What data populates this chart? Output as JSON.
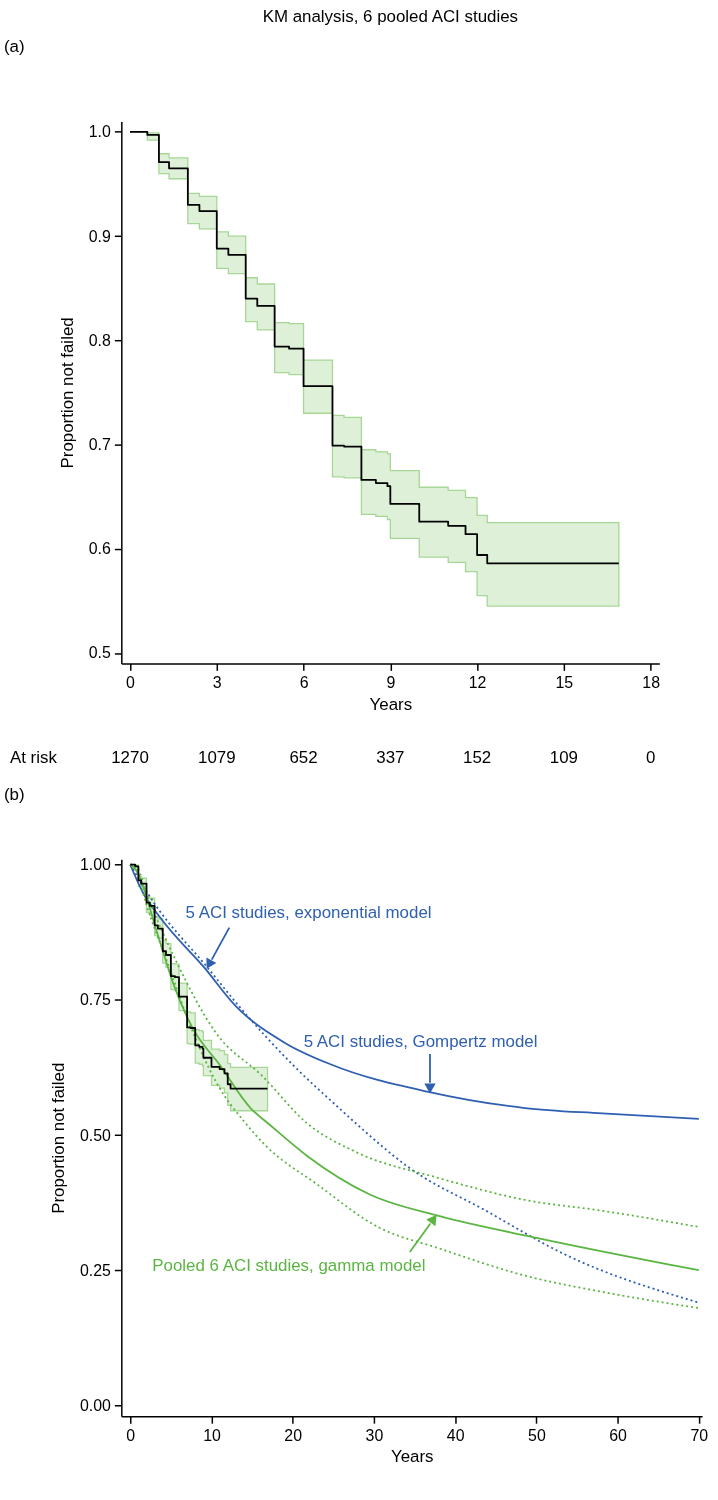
{
  "chart_data": [
    {
      "type": "step",
      "title": "KM analysis, 6 pooled ACI studies",
      "xlabel": "Years",
      "ylabel": "Proportion not failed",
      "xlim": [
        -0.3,
        18.3
      ],
      "ylim": [
        0.49,
        1.01
      ],
      "xticks": [
        0,
        3,
        6,
        9,
        12,
        15,
        18
      ],
      "yticks": [
        0.5,
        0.6,
        0.7,
        0.8,
        0.9,
        {
          "value": 1,
          "label": "1.0"
        }
      ],
      "series": [
        {
          "color": "#000000",
          "line_style": "solid",
          "x": [
            0,
            0.6,
            1.0,
            1.35,
            2,
            2.4,
            3,
            3.4,
            4,
            4.4,
            5,
            5.5,
            6,
            7,
            7.4,
            8,
            8.5,
            8.9,
            9,
            10,
            11,
            11.6,
            12,
            12.35,
            16.9
          ],
          "values": [
            1.0,
            0.997,
            0.971,
            0.965,
            0.93,
            0.924,
            0.888,
            0.882,
            0.84,
            0.833,
            0.794,
            0.792,
            0.756,
            0.699,
            0.698,
            0.666,
            0.663,
            0.66,
            0.643,
            0.626,
            0.622,
            0.614,
            0.594,
            0.586,
            0.586
          ],
          "upper": [
            1.0,
            0.999,
            0.979,
            0.975,
            0.941,
            0.938,
            0.904,
            0.9,
            0.86,
            0.854,
            0.817,
            0.816,
            0.781,
            0.728,
            0.726,
            0.695,
            0.693,
            0.691,
            0.675,
            0.659,
            0.656,
            0.649,
            0.632,
            0.625,
            0.625
          ],
          "lower": [
            1.0,
            0.992,
            0.96,
            0.955,
            0.912,
            0.907,
            0.869,
            0.864,
            0.818,
            0.81,
            0.769,
            0.767,
            0.73,
            0.669,
            0.668,
            0.633,
            0.631,
            0.628,
            0.61,
            0.592,
            0.587,
            0.578,
            0.555,
            0.545,
            0.545
          ]
        }
      ],
      "annotations": [
        "(a)",
        "At risk",
        "1270",
        "1079",
        "652",
        "337",
        "152",
        "109",
        "0"
      ]
    },
    {
      "type": "line",
      "xlabel": "Years",
      "ylabel": "Proportion not failed",
      "xlim": [
        -1.1,
        70.4
      ],
      "ylim": [
        -0.02,
        1.01
      ],
      "xticks": [
        0,
        10,
        20,
        30,
        40,
        50,
        60,
        70
      ],
      "yticks": [
        {
          "value": 0,
          "label": "0.00"
        },
        0.25,
        {
          "value": 0.5,
          "label": "0.50"
        },
        0.75,
        {
          "value": 1,
          "label": "1.00"
        }
      ],
      "series": [
        {
          "type": "step",
          "color": "#000000",
          "line_style": "solid",
          "x": [
            0,
            0.6,
            1.0,
            1.35,
            2,
            2.4,
            3,
            3.4,
            4,
            4.4,
            5,
            5.5,
            6,
            7,
            7.4,
            8,
            8.5,
            8.9,
            9,
            10,
            11,
            11.6,
            12,
            12.35,
            16.9
          ],
          "values": [
            1.0,
            0.997,
            0.971,
            0.965,
            0.93,
            0.924,
            0.888,
            0.882,
            0.84,
            0.833,
            0.794,
            0.792,
            0.756,
            0.699,
            0.698,
            0.666,
            0.663,
            0.66,
            0.643,
            0.626,
            0.622,
            0.614,
            0.594,
            0.586,
            0.586
          ],
          "upper": [
            1.0,
            0.999,
            0.979,
            0.975,
            0.941,
            0.938,
            0.904,
            0.9,
            0.86,
            0.854,
            0.817,
            0.816,
            0.781,
            0.728,
            0.726,
            0.695,
            0.693,
            0.691,
            0.675,
            0.659,
            0.656,
            0.649,
            0.632,
            0.625,
            0.625
          ],
          "lower": [
            1.0,
            0.992,
            0.96,
            0.955,
            0.912,
            0.907,
            0.869,
            0.864,
            0.818,
            0.81,
            0.769,
            0.767,
            0.73,
            0.669,
            0.668,
            0.633,
            0.631,
            0.628,
            0.61,
            0.592,
            0.587,
            0.578,
            0.555,
            0.545,
            0.545
          ]
        },
        {
          "color": "#2e5fb0",
          "line_style": "dotted",
          "x": [
            0,
            2.9,
            9.5,
            13.3,
            20,
            25.7,
            27.9,
            34.3,
            43.8,
            53.4,
            70
          ],
          "values": [
            1,
            0.93,
            0.81,
            0.74,
            0.63,
            0.55,
            0.52,
            0.44,
            0.36,
            0.28,
            0.19
          ]
        },
        {
          "color": "#2e5fb0",
          "line_style": "solid",
          "x": [
            0,
            1.5,
            3.8,
            9.1,
            12.9,
            19.1,
            24.8,
            36.7,
            48.6,
            58.1,
            70
          ],
          "values": [
            1,
            0.95,
            0.9,
            0.81,
            0.74,
            0.67,
            0.63,
            0.58,
            0.55,
            0.54,
            0.53
          ]
        },
        {
          "color": "#5bb543",
          "line_style": "solid",
          "x": [
            0,
            0.7,
            3.4,
            5.3,
            7.6,
            11,
            14.8,
            17.1,
            21.9,
            29.5,
            38.1,
            50,
            70
          ],
          "values": [
            1,
            0.99,
            0.87,
            0.78,
            0.7,
            0.63,
            0.55,
            0.52,
            0.46,
            0.39,
            0.35,
            0.31,
            0.25
          ]
        },
        {
          "color": "#5bb543",
          "line_style": "dotted",
          "x": [
            0,
            0.5,
            2.4,
            5.7,
            10.5,
            16.2,
            21.9,
            27.6,
            38.1,
            48.6,
            58.1,
            70
          ],
          "values": [
            1,
            1,
            0.93,
            0.82,
            0.69,
            0.61,
            0.52,
            0.47,
            0.42,
            0.38,
            0.36,
            0.33
          ]
        },
        {
          "color": "#5bb543",
          "line_style": "dotted",
          "x": [
            0,
            0.5,
            1.9,
            4.8,
            7.2,
            10.5,
            14.3,
            16.7,
            22.9,
            30.5,
            38.1,
            48.6,
            58.1,
            70
          ],
          "values": [
            1,
            1,
            0.93,
            0.81,
            0.71,
            0.6,
            0.52,
            0.48,
            0.41,
            0.33,
            0.29,
            0.24,
            0.21,
            0.18
          ]
        }
      ],
      "annotations": [
        "(b)",
        {
          "text": "5 ACI studies, exponential model",
          "x": 9.5,
          "y": 0.81
        },
        {
          "text": "5 ACI studies, Gompertz model",
          "x": 36.9,
          "y": 0.58
        },
        {
          "text": "Pooled 6 ACI studies, gamma model",
          "x": 37.6,
          "y": 0.35
        }
      ]
    }
  ]
}
